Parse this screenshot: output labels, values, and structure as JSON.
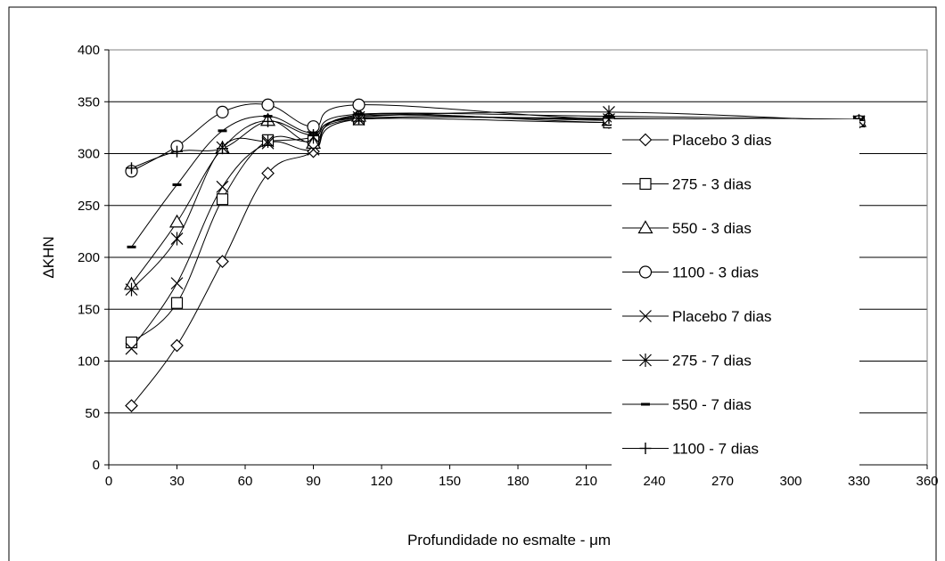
{
  "chart_data": {
    "type": "line",
    "xlabel": "Profundidade no esmalte - μm",
    "ylabel": "ΔKHN",
    "x": [
      10,
      30,
      50,
      70,
      90,
      110,
      220,
      330
    ],
    "xlim": [
      0,
      360
    ],
    "ylim": [
      0,
      400
    ],
    "xticks": [
      0,
      30,
      60,
      90,
      120,
      150,
      180,
      210,
      240,
      270,
      300,
      330,
      360
    ],
    "yticks": [
      0,
      50,
      100,
      150,
      200,
      250,
      300,
      350,
      400
    ],
    "grid": "horizontal",
    "legend_position": "right",
    "series": [
      {
        "name": "Placebo 3 dias",
        "marker": "diamond",
        "values": [
          57,
          115,
          196,
          281,
          302,
          337,
          330,
          330
        ]
      },
      {
        "name": "275 - 3 dias",
        "marker": "square",
        "values": [
          118,
          156,
          256,
          313,
          312,
          333,
          330,
          331
        ]
      },
      {
        "name": "550 - 3 dias",
        "marker": "triangle",
        "values": [
          174,
          234,
          305,
          332,
          310,
          336,
          332,
          331
        ]
      },
      {
        "name": "1100 - 3 dias",
        "marker": "circle",
        "values": [
          283,
          307,
          340,
          347,
          326,
          347,
          333,
          331
        ]
      },
      {
        "name": "Placebo 7 dias",
        "marker": "x",
        "values": [
          112,
          175,
          268,
          310,
          304,
          333,
          333,
          331
        ]
      },
      {
        "name": "275 - 7 dias",
        "marker": "asterisk",
        "values": [
          169,
          218,
          306,
          312,
          316,
          335,
          340,
          331
        ]
      },
      {
        "name": "550 - 7 dias",
        "marker": "dash",
        "values": [
          210,
          270,
          322,
          336,
          320,
          338,
          336,
          333
        ]
      },
      {
        "name": "1100 - 7 dias",
        "marker": "plus",
        "values": [
          286,
          302,
          305,
          331,
          318,
          334,
          334,
          332
        ]
      }
    ]
  }
}
